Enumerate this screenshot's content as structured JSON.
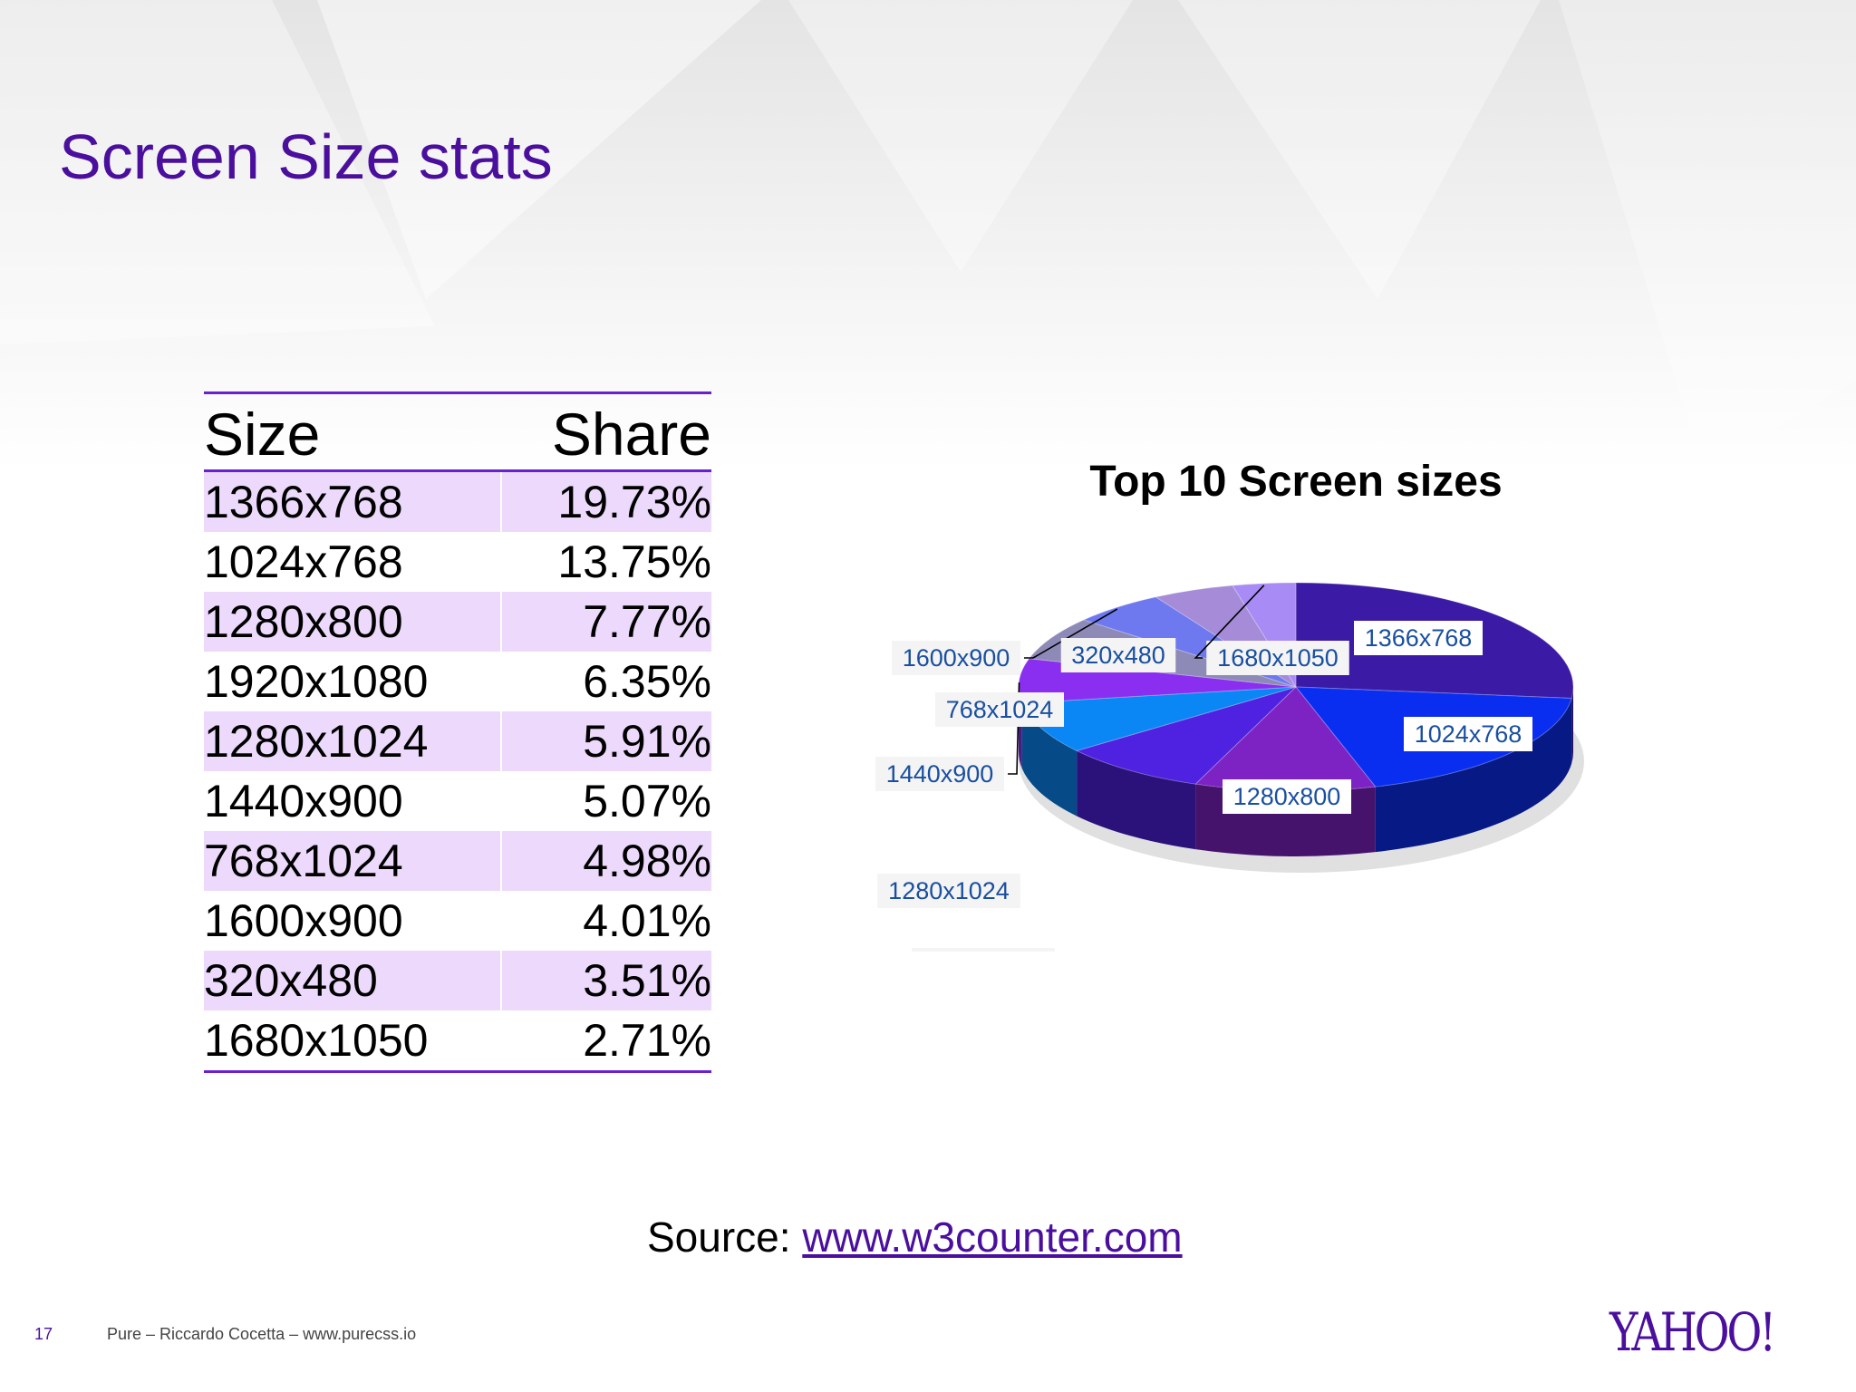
{
  "slide": {
    "title": "Screen Size stats",
    "page_number": "17",
    "footer_text": "Pure – Riccardo Cocetta – www.purecss.io",
    "logo_text": "YAHOO!"
  },
  "table": {
    "headers": {
      "size": "Size",
      "share": "Share"
    },
    "rows": [
      {
        "size": "1366x768",
        "share": "19.73%"
      },
      {
        "size": "1024x768",
        "share": "13.75%"
      },
      {
        "size": "1280x800",
        "share": "7.77%"
      },
      {
        "size": "1920x1080",
        "share": "6.35%"
      },
      {
        "size": "1280x1024",
        "share": "5.91%"
      },
      {
        "size": "1440x900",
        "share": "5.07%"
      },
      {
        "size": "768x1024",
        "share": "4.98%"
      },
      {
        "size": "1600x900",
        "share": "4.01%"
      },
      {
        "size": "320x480",
        "share": "3.51%"
      },
      {
        "size": "1680x1050",
        "share": "2.71%"
      }
    ]
  },
  "source": {
    "prefix": "Source: ",
    "link_text": "www.w3counter.com"
  },
  "colors": {
    "title": "#4b0f9e",
    "table_rule": "#6a1fd1",
    "row_stripe": "#ecd9fb",
    "label_text": "#1a4fa0"
  },
  "chart_data": {
    "type": "pie",
    "style": "3d",
    "title": "Top 10 Screen sizes",
    "categories": [
      "1366x768",
      "1024x768",
      "1280x800",
      "1920x1080",
      "1280x1024",
      "1440x900",
      "768x1024",
      "1600x900",
      "320x480",
      "1680x1050"
    ],
    "values": [
      19.73,
      13.75,
      7.77,
      6.35,
      5.91,
      5.07,
      4.98,
      4.01,
      3.51,
      2.71
    ],
    "colors": [
      "#3b1aa6",
      "#0a2ef0",
      "#7d23c4",
      "#4f21e0",
      "#0a86f5",
      "#8a2ef0",
      "#8e8ab8",
      "#6f79ef",
      "#a58bd8",
      "#a98bf5"
    ]
  }
}
